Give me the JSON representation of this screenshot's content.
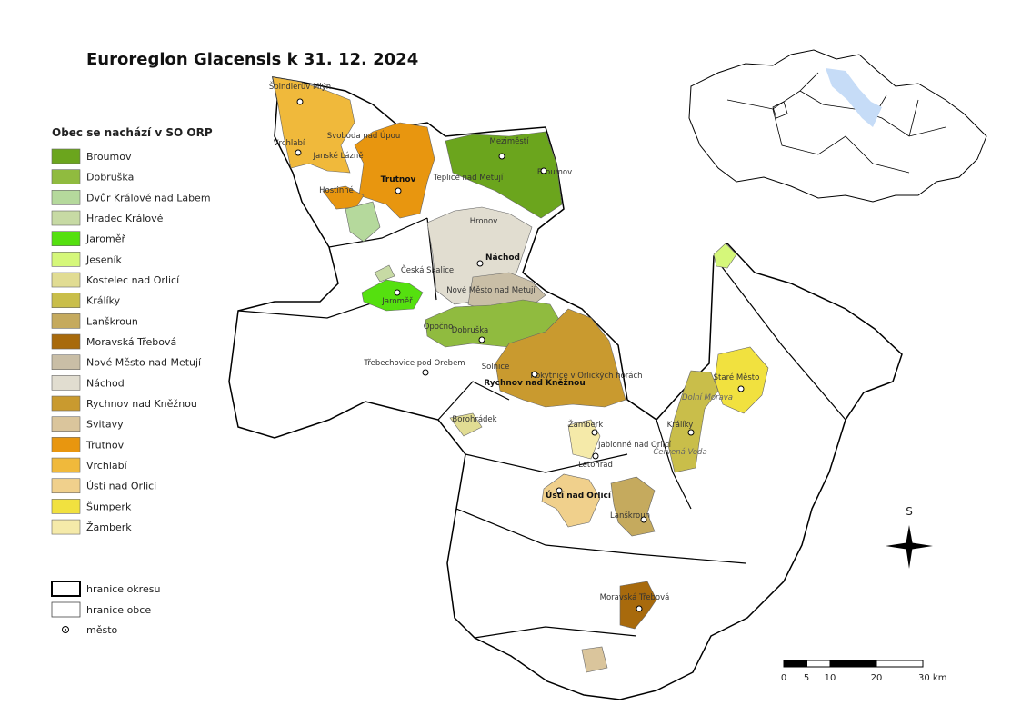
{
  "title": "Euroregion Glacensis k 31. 12. 2024",
  "legend": {
    "title": "Obec se nachází v SO ORP",
    "items": [
      {
        "name": "Broumov",
        "color": "#6ba51d"
      },
      {
        "name": "Dobruška",
        "color": "#90bb3f"
      },
      {
        "name": "Dvůr Králové nad Labem",
        "color": "#b5d99c"
      },
      {
        "name": "Hradec Králové",
        "color": "#c7daa4"
      },
      {
        "name": "Jaroměř",
        "color": "#55e00f"
      },
      {
        "name": "Jeseník",
        "color": "#d5f77a"
      },
      {
        "name": "Kostelec nad Orlicí",
        "color": "#e1dc93"
      },
      {
        "name": "Králíky",
        "color": "#c9be4a"
      },
      {
        "name": "Lanškroun",
        "color": "#c5aa5e"
      },
      {
        "name": "Moravská Třebová",
        "color": "#a86a0c"
      },
      {
        "name": "Nové Město nad Metují",
        "color": "#c9bea6"
      },
      {
        "name": "Náchod",
        "color": "#e1ddd0"
      },
      {
        "name": "Rychnov nad Kněžnou",
        "color": "#c99a2f"
      },
      {
        "name": "Svitavy",
        "color": "#dac59c"
      },
      {
        "name": "Trutnov",
        "color": "#e8960f"
      },
      {
        "name": "Vrchlabí",
        "color": "#f0b93b"
      },
      {
        "name": "Ústí nad Orlicí",
        "color": "#f0d08c"
      },
      {
        "name": "Šumperk",
        "color": "#f1e13f"
      },
      {
        "name": "Žamberk",
        "color": "#f5eaa9"
      }
    ],
    "boundaries": [
      "hranice okresu",
      "hranice obce",
      "město"
    ]
  },
  "map_labels": [
    "Špindlerův Mlýn",
    "Vrchlabí",
    "Janské Lázně",
    "Svoboda nad Úpou",
    "Hostinné",
    "Trutnov",
    "Meziměstí",
    "Broumov",
    "Teplice nad Metují",
    "Hronov",
    "Náchod",
    "Česká Skalice",
    "Nové Město nad Metují",
    "Jaroměř",
    "Dobruška",
    "Opočno",
    "Třebechovice pod Orebem",
    "Solnice",
    "Rychnov nad Kněžnou",
    "Rokytnice v Orlických horách",
    "Borohrádek",
    "Žamberk",
    "Jablonné nad Orlicí",
    "Letohrad",
    "Králíky",
    "Staré Město",
    "Ústí nad Orlicí",
    "Lanškroun",
    "Moravská Třebová",
    "Červená Voda",
    "Dolní Morava"
  ],
  "north": "S",
  "scale": [
    "0",
    "5",
    "10",
    "20",
    "30 km"
  ]
}
